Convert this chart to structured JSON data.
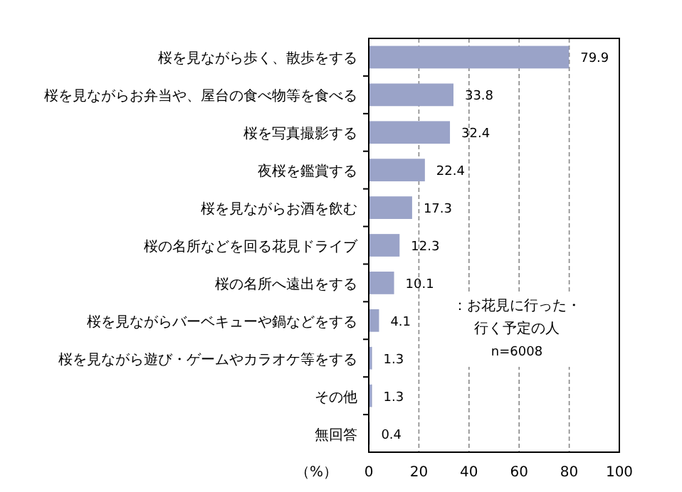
{
  "chart_data": {
    "type": "bar",
    "orientation": "horizontal",
    "categories": [
      "桜を見ながら歩く、散歩をする",
      "桜を見ながらお弁当や、屋台の食べ物等を食べる",
      "桜を写真撮影する",
      "夜桜を鑑賞する",
      "桜を見ながらお酒を飲む",
      "桜の名所などを回る花見ドライブ",
      "桜の名所へ遠出をする",
      "桜を見ながらバーベキューや鍋などをする",
      "桜を見ながら遊び・ゲームやカラオケ等をする",
      "その他",
      "無回答"
    ],
    "values": [
      79.9,
      33.8,
      32.4,
      22.4,
      17.3,
      12.3,
      10.1,
      4.1,
      1.3,
      1.3,
      0.4
    ],
    "color": "#9aa3c8",
    "xlim": [
      0,
      100
    ],
    "xticks": [
      0,
      20,
      40,
      60,
      80,
      100
    ],
    "grid": "x",
    "data_labels": true,
    "xlabel": "（%）",
    "annotations": [
      "：お花見に行った・",
      "行く予定の人",
      "n=6008"
    ]
  }
}
